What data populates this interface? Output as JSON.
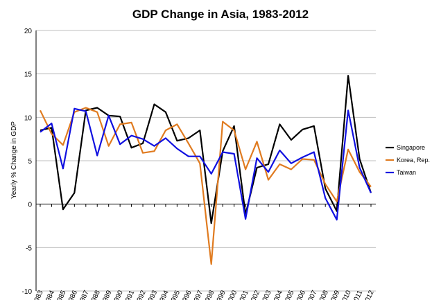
{
  "chart_data": {
    "type": "line",
    "title": "GDP Change in Asia, 1983-2012",
    "xlabel": "",
    "ylabel": "Yearly % Change in GDP",
    "ylim": [
      -10,
      20
    ],
    "yticks": [
      -10,
      -5,
      0,
      5,
      10,
      15,
      20
    ],
    "grid": true,
    "legend_position": "right",
    "categories": [
      "1983",
      "1984",
      "1985",
      "1986",
      "1987",
      "1988",
      "1989",
      "1990",
      "1991",
      "1992",
      "1993",
      "1994",
      "1995",
      "1996",
      "1997",
      "1998",
      "1999",
      "2000",
      "2001",
      "2002",
      "2003",
      "2004",
      "2005",
      "2006",
      "2007",
      "2008",
      "2009",
      "2010",
      "2011",
      "2012"
    ],
    "series": [
      {
        "name": "Singapore",
        "color": "#000000",
        "values": [
          8.5,
          8.8,
          -0.6,
          1.3,
          10.8,
          11.1,
          10.2,
          10.1,
          6.5,
          7.0,
          11.5,
          10.6,
          7.3,
          7.6,
          8.5,
          -2.2,
          6.1,
          9.0,
          -1.2,
          4.2,
          4.6,
          9.2,
          7.4,
          8.6,
          9.0,
          1.8,
          -0.8,
          14.8,
          5.2,
          1.3
        ]
      },
      {
        "name": "Korea, Rep.",
        "color": "#e07b20",
        "values": [
          10.8,
          8.1,
          6.8,
          10.6,
          11.1,
          10.6,
          6.7,
          9.2,
          9.4,
          5.9,
          6.1,
          8.5,
          9.2,
          7.0,
          4.7,
          -6.9,
          9.5,
          8.5,
          4.0,
          7.2,
          2.8,
          4.6,
          4.0,
          5.2,
          5.1,
          2.3,
          0.3,
          6.3,
          3.7,
          2.0
        ]
      },
      {
        "name": "Taiwan",
        "color": "#1010e0",
        "values": [
          8.3,
          9.3,
          4.1,
          11.0,
          10.7,
          5.6,
          10.2,
          6.9,
          7.9,
          7.5,
          6.7,
          7.6,
          6.4,
          5.5,
          5.5,
          3.5,
          6.0,
          5.8,
          -1.7,
          5.3,
          3.7,
          6.2,
          4.7,
          5.4,
          6.0,
          0.7,
          -1.8,
          10.8,
          4.2,
          1.3
        ]
      }
    ]
  }
}
